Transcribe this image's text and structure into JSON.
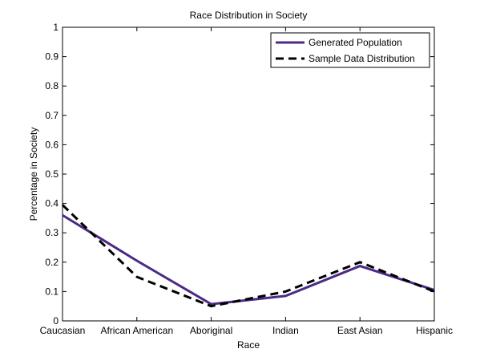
{
  "chart_data": {
    "type": "line",
    "title": "Race Distribution in Society",
    "xlabel": "Race",
    "ylabel": "Percentage in Society",
    "categories": [
      "Caucasian",
      "African American",
      "Aboriginal",
      "Indian",
      "East Asian",
      "Hispanic"
    ],
    "ylim": [
      0,
      1
    ],
    "yticks": [
      "0",
      "0.1",
      "0.2",
      "0.3",
      "0.4",
      "0.5",
      "0.6",
      "0.7",
      "0.8",
      "0.9",
      "1"
    ],
    "grid": false,
    "legend_position": "top-right",
    "series": [
      {
        "name": "Generated Population",
        "values": [
          0.36,
          0.205,
          0.057,
          0.085,
          0.187,
          0.105
        ],
        "color": "#4b2a86",
        "style": "solid"
      },
      {
        "name": "Sample Data Distribution",
        "values": [
          0.395,
          0.15,
          0.05,
          0.1,
          0.2,
          0.1
        ],
        "color": "#000000",
        "style": "dashed"
      }
    ]
  }
}
